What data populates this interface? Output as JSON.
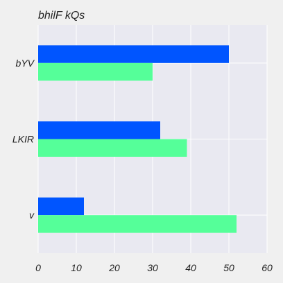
{
  "chart_data": {
    "type": "bar",
    "orientation": "horizontal",
    "title": "bhilF kQs",
    "xlabel": "",
    "ylabel": "",
    "categories": [
      "v",
      "LKIR",
      "bYV"
    ],
    "series": [
      {
        "color": "#0055ff",
        "values": [
          12,
          32,
          50
        ]
      },
      {
        "color": "#55ff99",
        "values": [
          52,
          39,
          30
        ]
      }
    ],
    "xlim": [
      0,
      60
    ],
    "xticks": [
      0,
      10,
      20,
      30,
      40,
      50,
      60
    ],
    "grid": true,
    "legend": "none"
  },
  "colors": {
    "background": "#f0f0f0",
    "plot_background": "#e9e9f1",
    "grid": "#ffffff",
    "text": "#222222"
  }
}
